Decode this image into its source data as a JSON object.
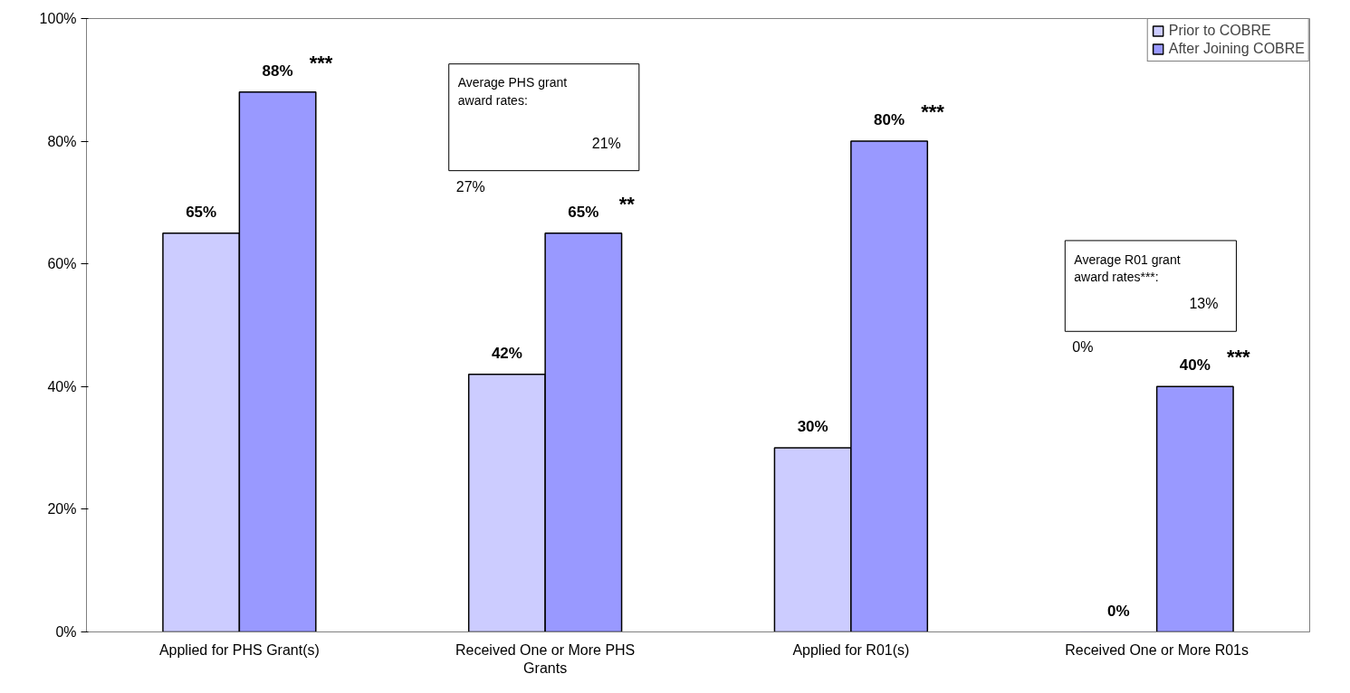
{
  "chart_data": {
    "type": "bar",
    "categories": [
      "Applied for PHS Grant(s)",
      "Received One or More PHS\nGrants",
      "Applied for R01(s)",
      "Received One or More R01s"
    ],
    "series": [
      {
        "name": "Prior to COBRE",
        "color": "#ccccff",
        "values": [
          65,
          42,
          30,
          0
        ],
        "value_labels": [
          "65%",
          "42%",
          "30%",
          "0%"
        ]
      },
      {
        "name": "After Joining COBRE",
        "color": "#9999ff",
        "values": [
          88,
          65,
          80,
          40
        ],
        "value_labels": [
          "88%",
          "65%",
          "80%",
          "40%"
        ]
      }
    ],
    "ylim": [
      0,
      100
    ],
    "yticks": [
      {
        "value": 0,
        "label": "0%"
      },
      {
        "value": 20,
        "label": "20%"
      },
      {
        "value": 40,
        "label": "40%"
      },
      {
        "value": 60,
        "label": "60%"
      },
      {
        "value": 80,
        "label": "80%"
      },
      {
        "value": 100,
        "label": "100%"
      }
    ],
    "grid": false,
    "legend": "top right",
    "annotations": [
      "***",
      "**",
      "***",
      "***",
      "Average PHS grant\naward rates:",
      "27%",
      "21%",
      "Average R01 grant\naward rates***:",
      "0%",
      "13%"
    ]
  }
}
